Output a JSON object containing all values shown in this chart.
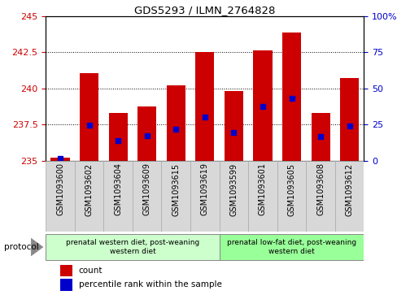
{
  "title": "GDS5293 / ILMN_2764828",
  "samples": [
    "GSM1093600",
    "GSM1093602",
    "GSM1093604",
    "GSM1093609",
    "GSM1093615",
    "GSM1093619",
    "GSM1093599",
    "GSM1093601",
    "GSM1093605",
    "GSM1093608",
    "GSM1093612"
  ],
  "counts": [
    235.2,
    241.05,
    238.3,
    238.75,
    240.2,
    242.5,
    239.82,
    242.65,
    243.85,
    238.3,
    240.7
  ],
  "percentiles": [
    1.5,
    24.5,
    14.0,
    17.5,
    22.0,
    30.5,
    19.5,
    37.5,
    43.0,
    16.5,
    24.0
  ],
  "ylim_left": [
    235,
    245
  ],
  "ylim_right": [
    0,
    100
  ],
  "yticks_left": [
    235,
    237.5,
    240,
    242.5,
    245
  ],
  "yticks_right": [
    0,
    25,
    50,
    75,
    100
  ],
  "bar_color": "#cc0000",
  "dot_color": "#0000cc",
  "bar_width": 0.65,
  "group1_label": "prenatal western diet, post-weaning\nwestern diet",
  "group2_label": "prenatal low-fat diet, post-weaning\nwestern diet",
  "group1_color": "#ccffcc",
  "group2_color": "#99ff99",
  "group1_count": 6,
  "group2_count": 5,
  "protocol_label": "protocol",
  "legend_count_label": "count",
  "legend_percentile_label": "percentile rank within the sample",
  "tick_color_left": "#cc0000",
  "tick_color_right": "#0000cc",
  "cell_bg": "#d8d8d8",
  "cell_border": "#aaaaaa",
  "bg_color_fig": "#ffffff"
}
